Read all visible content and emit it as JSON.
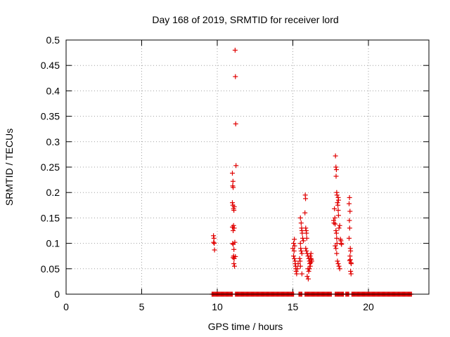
{
  "chart_data": {
    "type": "scatter",
    "title": "Day 168 of 2019, SRMTID for receiver lord",
    "xlabel": "GPS time / hours",
    "ylabel": "SRMTID / TECUs",
    "xlim": [
      0,
      24
    ],
    "ylim": [
      0,
      0.5
    ],
    "x_ticks": [
      "0",
      "5",
      "10",
      "15",
      "20"
    ],
    "x_tick_values": [
      0,
      5,
      10,
      15,
      20
    ],
    "y_ticks": [
      "0",
      "0.05",
      "0.1",
      "0.15",
      "0.2",
      "0.25",
      "0.3",
      "0.35",
      "0.4",
      "0.45",
      "0.5"
    ],
    "y_tick_values": [
      0,
      0.05,
      0.1,
      0.15,
      0.2,
      0.25,
      0.3,
      0.35,
      0.4,
      0.45,
      0.5
    ],
    "grid": true,
    "marker": "plus",
    "marker_color": "#e00000",
    "zero_bands": [
      [
        9.65,
        11.0
      ],
      [
        11.2,
        15.05
      ],
      [
        15.4,
        15.6
      ],
      [
        15.8,
        17.55
      ],
      [
        17.8,
        18.35
      ],
      [
        18.5,
        18.7
      ],
      [
        18.9,
        22.85
      ]
    ],
    "points": [
      [
        9.75,
        0.115
      ],
      [
        9.78,
        0.11
      ],
      [
        9.8,
        0.1
      ],
      [
        9.82,
        0.087
      ],
      [
        9.76,
        0.102
      ],
      [
        11.0,
        0.238
      ],
      [
        11.02,
        0.213
      ],
      [
        11.05,
        0.21
      ],
      [
        11.04,
        0.222
      ],
      [
        11.0,
        0.18
      ],
      [
        11.03,
        0.175
      ],
      [
        11.08,
        0.168
      ],
      [
        11.1,
        0.165
      ],
      [
        11.12,
        0.172
      ],
      [
        11.0,
        0.132
      ],
      [
        11.05,
        0.125
      ],
      [
        11.08,
        0.135
      ],
      [
        11.12,
        0.13
      ],
      [
        11.02,
        0.1
      ],
      [
        11.05,
        0.098
      ],
      [
        11.1,
        0.088
      ],
      [
        11.08,
        0.075
      ],
      [
        11.12,
        0.07
      ],
      [
        11.05,
        0.072
      ],
      [
        11.1,
        0.06
      ],
      [
        11.14,
        0.055
      ],
      [
        11.18,
        0.48
      ],
      [
        11.2,
        0.428
      ],
      [
        11.22,
        0.335
      ],
      [
        11.24,
        0.253
      ],
      [
        11.16,
        0.102
      ],
      [
        11.2,
        0.074
      ],
      [
        15.0,
        0.09
      ],
      [
        15.05,
        0.1
      ],
      [
        15.1,
        0.108
      ],
      [
        15.08,
        0.085
      ],
      [
        15.12,
        0.095
      ],
      [
        15.15,
        0.06
      ],
      [
        15.18,
        0.055
      ],
      [
        15.2,
        0.05
      ],
      [
        15.22,
        0.045
      ],
      [
        15.25,
        0.04
      ],
      [
        15.1,
        0.07
      ],
      [
        15.15,
        0.065
      ],
      [
        15.05,
        0.075
      ],
      [
        15.3,
        0.05
      ],
      [
        15.35,
        0.06
      ],
      [
        15.5,
        0.15
      ],
      [
        15.55,
        0.14
      ],
      [
        15.6,
        0.125
      ],
      [
        15.62,
        0.12
      ],
      [
        15.58,
        0.13
      ],
      [
        15.65,
        0.11
      ],
      [
        15.7,
        0.105
      ],
      [
        15.5,
        0.1
      ],
      [
        15.52,
        0.09
      ],
      [
        15.55,
        0.085
      ],
      [
        15.6,
        0.08
      ],
      [
        15.45,
        0.07
      ],
      [
        15.48,
        0.065
      ],
      [
        15.5,
        0.055
      ],
      [
        15.6,
        0.04
      ],
      [
        15.82,
        0.195
      ],
      [
        15.84,
        0.188
      ],
      [
        15.8,
        0.16
      ],
      [
        15.85,
        0.13
      ],
      [
        15.9,
        0.12
      ],
      [
        15.88,
        0.125
      ],
      [
        15.92,
        0.11
      ],
      [
        15.85,
        0.09
      ],
      [
        15.9,
        0.085
      ],
      [
        15.95,
        0.08
      ],
      [
        16.0,
        0.075
      ],
      [
        16.05,
        0.07
      ],
      [
        16.1,
        0.065
      ],
      [
        16.12,
        0.06
      ],
      [
        16.15,
        0.055
      ],
      [
        16.0,
        0.05
      ],
      [
        16.05,
        0.045
      ],
      [
        16.1,
        0.05
      ],
      [
        15.95,
        0.035
      ],
      [
        16.02,
        0.03
      ],
      [
        16.18,
        0.062
      ],
      [
        16.2,
        0.07
      ],
      [
        16.22,
        0.068
      ],
      [
        16.25,
        0.065
      ],
      [
        16.15,
        0.075
      ],
      [
        16.2,
        0.08
      ],
      [
        17.75,
        0.168
      ],
      [
        17.7,
        0.145
      ],
      [
        17.72,
        0.14
      ],
      [
        17.78,
        0.15
      ],
      [
        17.8,
        0.138
      ],
      [
        17.82,
        0.272
      ],
      [
        17.85,
        0.25
      ],
      [
        17.88,
        0.245
      ],
      [
        17.86,
        0.232
      ],
      [
        17.9,
        0.2
      ],
      [
        17.92,
        0.195
      ],
      [
        17.95,
        0.18
      ],
      [
        17.98,
        0.175
      ],
      [
        18.0,
        0.165
      ],
      [
        18.02,
        0.155
      ],
      [
        17.85,
        0.125
      ],
      [
        17.88,
        0.12
      ],
      [
        17.9,
        0.11
      ],
      [
        17.92,
        0.1
      ],
      [
        17.8,
        0.095
      ],
      [
        17.85,
        0.09
      ],
      [
        17.9,
        0.08
      ],
      [
        17.95,
        0.065
      ],
      [
        18.0,
        0.06
      ],
      [
        18.05,
        0.055
      ],
      [
        18.1,
        0.05
      ],
      [
        18.15,
        0.108
      ],
      [
        18.18,
        0.105
      ],
      [
        18.2,
        0.1
      ],
      [
        18.22,
        0.098
      ],
      [
        18.05,
        0.13
      ],
      [
        18.1,
        0.135
      ],
      [
        18.0,
        0.19
      ],
      [
        18.02,
        0.185
      ],
      [
        18.75,
        0.19
      ],
      [
        18.72,
        0.178
      ],
      [
        18.78,
        0.163
      ],
      [
        18.74,
        0.145
      ],
      [
        18.76,
        0.13
      ],
      [
        18.72,
        0.11
      ],
      [
        18.8,
        0.09
      ],
      [
        18.82,
        0.085
      ],
      [
        18.78,
        0.075
      ],
      [
        18.8,
        0.068
      ],
      [
        18.84,
        0.062
      ],
      [
        18.86,
        0.06
      ],
      [
        18.82,
        0.045
      ],
      [
        18.85,
        0.04
      ],
      [
        18.76,
        0.066
      ]
    ]
  }
}
